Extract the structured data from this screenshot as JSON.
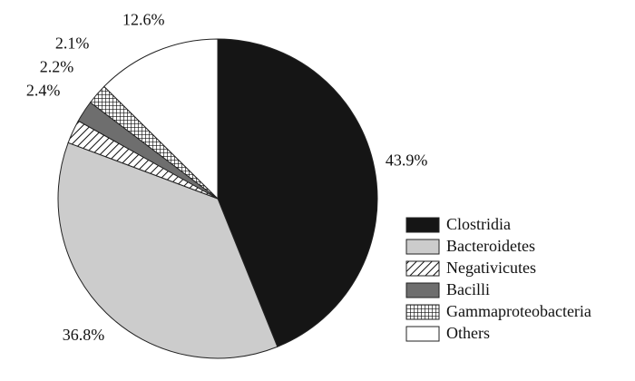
{
  "chart_data": {
    "type": "pie",
    "categories": [
      "Clostridia",
      "Bacteroidetes",
      "Negativicutes",
      "Bacilli",
      "Gammaproteobacteria",
      "Others"
    ],
    "values": [
      43.9,
      36.8,
      2.4,
      2.2,
      2.1,
      12.6
    ],
    "value_labels": [
      "43.9%",
      "36.8%",
      "2.4%",
      "2.2%",
      "2.1%",
      "12.6%"
    ],
    "colors": [
      "#151515",
      "#cccccc",
      "#ffffff",
      "#6e6e6e",
      "#ffffff",
      "#ffffff"
    ],
    "patterns": [
      null,
      null,
      "diagonal",
      null,
      "grid",
      null
    ],
    "legend": "lower-right"
  }
}
